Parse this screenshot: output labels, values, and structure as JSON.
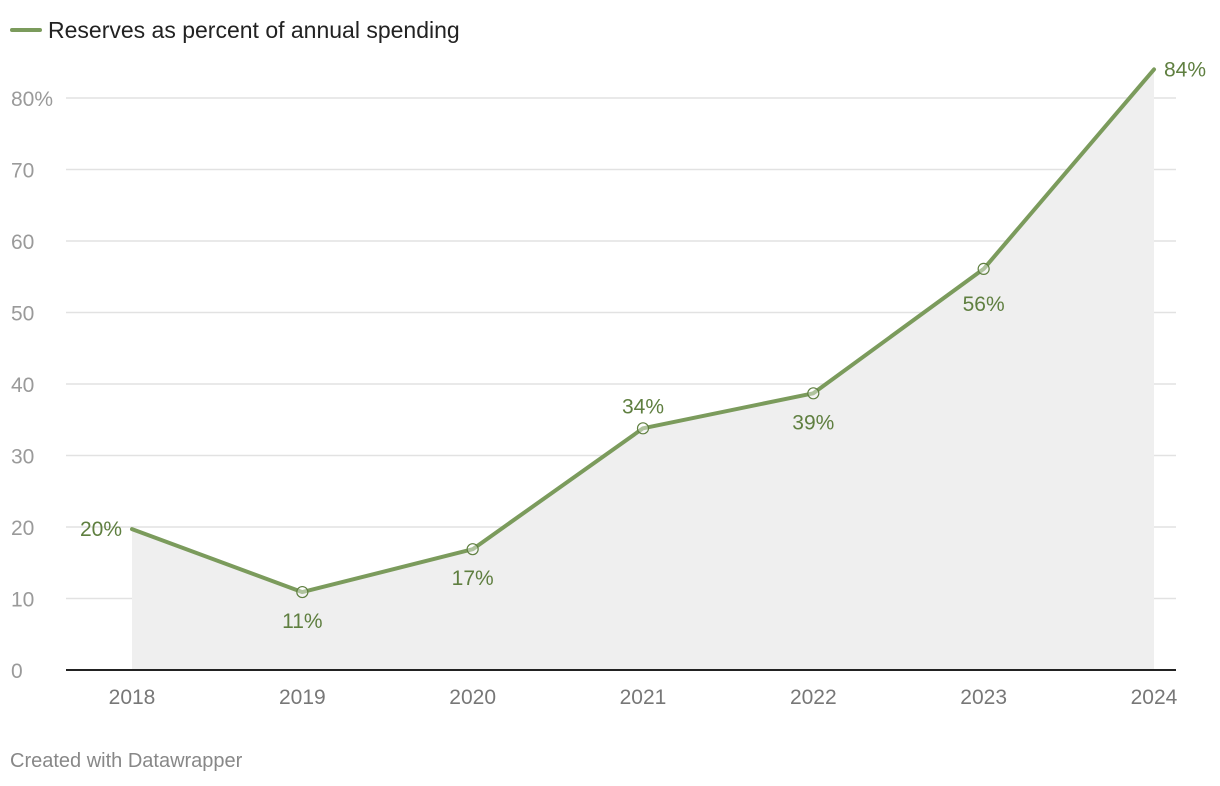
{
  "chart_data": {
    "type": "line",
    "title": "",
    "xlabel": "",
    "ylabel": "",
    "categories": [
      "2018",
      "2019",
      "2020",
      "2021",
      "2022",
      "2023",
      "2024"
    ],
    "series": [
      {
        "name": "Reserves as percent of annual spending",
        "values": [
          19.7,
          10.9,
          16.9,
          33.8,
          38.7,
          56.1,
          84.0
        ],
        "labels": [
          "20%",
          "11%",
          "17%",
          "34%",
          "39%",
          "56%",
          "84%"
        ]
      }
    ],
    "ylim": [
      0,
      84
    ],
    "yticks": [
      0,
      10,
      20,
      30,
      40,
      50,
      60,
      70,
      80
    ],
    "ytick_labels": [
      "0",
      "10",
      "20",
      "30",
      "40",
      "50",
      "60",
      "70",
      "80%"
    ],
    "grid": true,
    "area_fill": true,
    "legend": "top-left"
  },
  "colors": {
    "line": "#7b9b5c",
    "label": "#5f7f40",
    "area": "#efefef",
    "grid": "#e2e2e2",
    "axis": "#222222"
  },
  "footer": {
    "credit": "Created with Datawrapper"
  }
}
